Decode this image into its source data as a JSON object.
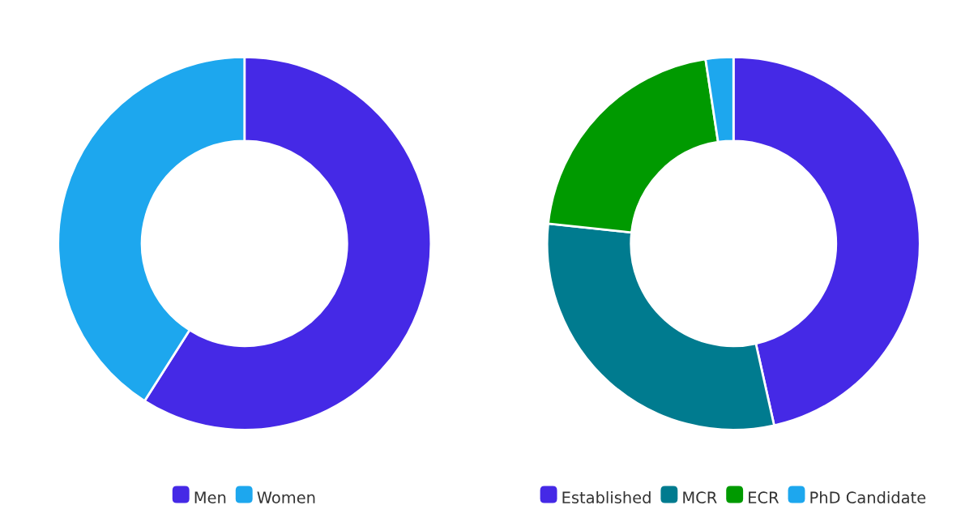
{
  "chart_data": [
    {
      "type": "donut",
      "categories": [
        "Men",
        "Women"
      ],
      "values": [
        59,
        41
      ],
      "colors": [
        "#4529e6",
        "#1da7ee"
      ],
      "legend": "bottom"
    },
    {
      "type": "donut",
      "categories": [
        "Established",
        "MCR",
        "ECR",
        "PhD Candidate"
      ],
      "values": [
        46.5,
        30.2,
        20.9,
        2.4
      ],
      "colors": [
        "#4529e6",
        "#007b8f",
        "#009a00",
        "#1da7ee"
      ],
      "legend": "bottom"
    }
  ]
}
